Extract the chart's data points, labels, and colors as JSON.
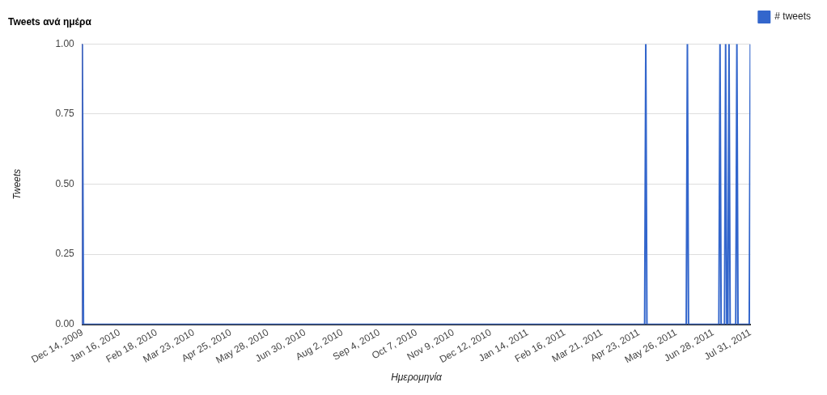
{
  "chart_data": {
    "type": "line",
    "title": "Tweets ανά ημέρα",
    "xlabel": "Ημερομηνία",
    "ylabel": "Tweets",
    "series": [
      {
        "name": "# tweets",
        "color": "#3366cc",
        "x": [
          "2009-12-14",
          "2009-12-15",
          "2011-04-28",
          "2011-04-29",
          "2011-04-30",
          "2011-06-04",
          "2011-06-05",
          "2011-06-06",
          "2011-07-03",
          "2011-07-04",
          "2011-07-05",
          "2011-07-08",
          "2011-07-09",
          "2011-07-10",
          "2011-07-11",
          "2011-07-12",
          "2011-07-13",
          "2011-07-18",
          "2011-07-19",
          "2011-07-20",
          "2011-07-30",
          "2011-07-31"
        ],
        "values": [
          1,
          0,
          0,
          1,
          0,
          0,
          1,
          0,
          0,
          1,
          0,
          0,
          1,
          0,
          0,
          1,
          0,
          0,
          1,
          0,
          0,
          1
        ]
      }
    ],
    "xlim": [
      "2009-12-14",
      "2011-07-31"
    ],
    "xticks": [
      {
        "value": "2009-12-14",
        "label": "Dec 14, 2009"
      },
      {
        "value": "2010-01-16",
        "label": "Jan 16, 2010"
      },
      {
        "value": "2010-02-18",
        "label": "Feb 18, 2010"
      },
      {
        "value": "2010-03-23",
        "label": "Mar 23, 2010"
      },
      {
        "value": "2010-04-25",
        "label": "Apr 25, 2010"
      },
      {
        "value": "2010-05-28",
        "label": "May 28, 2010"
      },
      {
        "value": "2010-06-30",
        "label": "Jun 30, 2010"
      },
      {
        "value": "2010-08-02",
        "label": "Aug 2, 2010"
      },
      {
        "value": "2010-09-04",
        "label": "Sep 4, 2010"
      },
      {
        "value": "2010-10-07",
        "label": "Oct 7, 2010"
      },
      {
        "value": "2010-11-09",
        "label": "Nov 9, 2010"
      },
      {
        "value": "2010-12-12",
        "label": "Dec 12, 2010"
      },
      {
        "value": "2011-01-14",
        "label": "Jan 14, 2011"
      },
      {
        "value": "2011-02-16",
        "label": "Feb 16, 2011"
      },
      {
        "value": "2011-03-21",
        "label": "Mar 21, 2011"
      },
      {
        "value": "2011-04-23",
        "label": "Apr 23, 2011"
      },
      {
        "value": "2011-05-26",
        "label": "May 26, 2011"
      },
      {
        "value": "2011-06-28",
        "label": "Jun 28, 2011"
      },
      {
        "value": "2011-07-31",
        "label": "Jul 31, 2011"
      }
    ],
    "ylim": [
      0,
      1
    ],
    "yticks": [
      {
        "value": 0,
        "label": "0.00"
      },
      {
        "value": 0.25,
        "label": "0.25"
      },
      {
        "value": 0.5,
        "label": "0.50"
      },
      {
        "value": 0.75,
        "label": "0.75"
      },
      {
        "value": 1,
        "label": "1.00"
      }
    ],
    "grid": "y",
    "legend": "top right",
    "marker": "none",
    "line_style": "solid"
  }
}
